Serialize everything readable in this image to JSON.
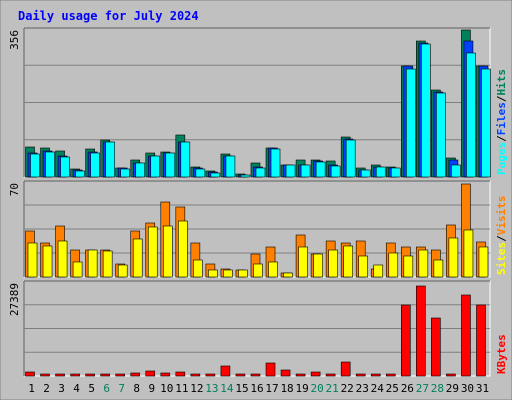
{
  "colors": {
    "background": "#c0c0c0",
    "frame": "#7f7f7f",
    "grid": "#7f7f7f",
    "title": "#0000ff",
    "hits": "#00805c",
    "files": "#0040ff",
    "pages": "#00ffff",
    "visits": "#ff8000",
    "sites": "#ffff00",
    "kbytes": "#ff0000",
    "day_label": "#000000",
    "weekend_label": "#00805c",
    "axis_text": "#000000"
  },
  "chart_data": {
    "type": "bar",
    "title": "Daily usage for July 2024",
    "days": [
      "1",
      "2",
      "3",
      "4",
      "5",
      "6",
      "7",
      "8",
      "9",
      "10",
      "11",
      "12",
      "13",
      "14",
      "15",
      "16",
      "17",
      "18",
      "19",
      "20",
      "21",
      "22",
      "23",
      "24",
      "25",
      "26",
      "27",
      "28",
      "29",
      "30",
      "31"
    ],
    "weekend_days": [
      "6",
      "7",
      "13",
      "14",
      "20",
      "21",
      "27",
      "28"
    ],
    "panels": [
      {
        "id": "requests",
        "max_label": "356",
        "ylim": [
          0,
          356
        ],
        "legend": [
          "Pages",
          "Files",
          "Hits"
        ],
        "series": [
          {
            "name": "Hits",
            "color": "hits",
            "values": [
              72,
              70,
              62,
              20,
              68,
              90,
              22,
              42,
              58,
              60,
              102,
              25,
              15,
              55,
              8,
              35,
              70,
              30,
              40,
              42,
              38,
              98,
              22,
              28,
              25,
              268,
              330,
              210,
              45,
              356,
              270
            ]
          },
          {
            "name": "Files",
            "color": "files",
            "values": [
              58,
              62,
              50,
              16,
              60,
              85,
              22,
              35,
              52,
              58,
              85,
              22,
              12,
              52,
              6,
              25,
              70,
              28,
              30,
              38,
              28,
              92,
              18,
              25,
              22,
              268,
              325,
              205,
              40,
              330,
              268
            ]
          },
          {
            "name": "Pages",
            "color": "pages",
            "values": [
              55,
              60,
              48,
              14,
              58,
              84,
              20,
              34,
              50,
              58,
              84,
              20,
              10,
              52,
              6,
              22,
              68,
              28,
              30,
              36,
              26,
              90,
              18,
              24,
              22,
              262,
              322,
              204,
              30,
              300,
              262
            ]
          }
        ]
      },
      {
        "id": "visitors",
        "max_label": "70",
        "ylim": [
          0,
          70
        ],
        "legend": [
          "Sites",
          "Visits"
        ],
        "series": [
          {
            "name": "Visits",
            "color": "visits",
            "values": [
              34,
              25,
              38,
              20,
              20,
              20,
              10,
              34,
              40,
              56,
              52,
              25,
              10,
              6,
              5,
              17,
              22,
              3,
              31,
              17,
              27,
              25,
              27,
              6,
              25,
              22,
              22,
              20,
              39,
              69,
              26
            ]
          },
          {
            "name": "Sites",
            "color": "sites",
            "values": [
              25,
              23,
              27,
              11,
              20,
              19,
              9,
              28,
              37,
              38,
              42,
              13,
              5,
              5,
              5,
              10,
              11,
              3,
              22,
              17,
              20,
              23,
              16,
              9,
              18,
              16,
              20,
              13,
              29,
              35,
              22
            ]
          }
        ]
      },
      {
        "id": "traffic",
        "max_label": "27389",
        "ylim": [
          0,
          27389
        ],
        "legend": [
          "KBytes"
        ],
        "series": [
          {
            "name": "KBytes",
            "color": "kbytes",
            "values": [
              1200,
              300,
              700,
              400,
              600,
              300,
              300,
              1000,
              1500,
              900,
              1200,
              600,
              300,
              3000,
              500,
              700,
              3700,
              1800,
              600,
              1300,
              600,
              4200,
              500,
              700,
              500,
              21000,
              26500,
              17000,
              600,
              24000,
              21000
            ]
          }
        ]
      }
    ]
  }
}
